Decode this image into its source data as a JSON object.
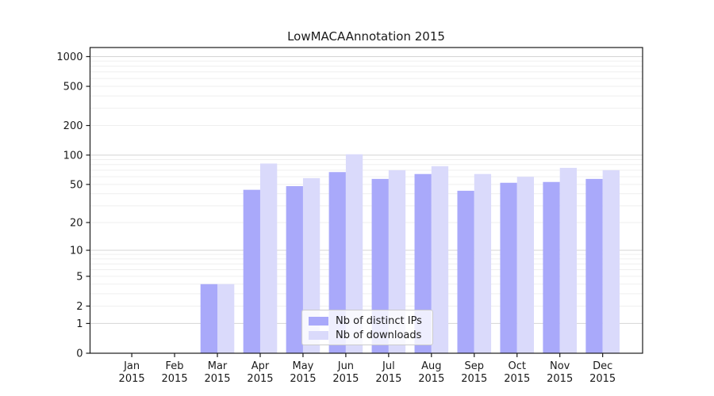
{
  "chart_data": {
    "type": "bar",
    "title": "LowMACAAnnotation 2015",
    "scale": "log1p",
    "categories": [
      "Jan",
      "Feb",
      "Mar",
      "Apr",
      "May",
      "Jun",
      "Jul",
      "Aug",
      "Sep",
      "Oct",
      "Nov",
      "Dec"
    ],
    "year_label": "2015",
    "series": [
      {
        "name": "Nb of distinct IPs",
        "color": "#a9a9fa",
        "values": [
          0,
          0,
          4,
          44,
          48,
          67,
          57,
          64,
          43,
          52,
          53,
          57
        ]
      },
      {
        "name": "Nb of downloads",
        "color": "#dadafb",
        "values": [
          0,
          0,
          4,
          82,
          58,
          102,
          70,
          77,
          64,
          60,
          74,
          70
        ]
      }
    ],
    "y_ticks": [
      0,
      1,
      2,
      5,
      10,
      20,
      50,
      100,
      200,
      500,
      1000
    ],
    "ylim": [
      0,
      1236
    ],
    "grid": "horizontal-log-minor-and-major",
    "legend_position": "bottom-center-inside",
    "colors": {
      "grid_minor": "#efefef",
      "grid_major": "#d4d4d4",
      "spine": "#1a1a1a",
      "text": "#1a1a1a",
      "background": "#ffffff"
    }
  }
}
